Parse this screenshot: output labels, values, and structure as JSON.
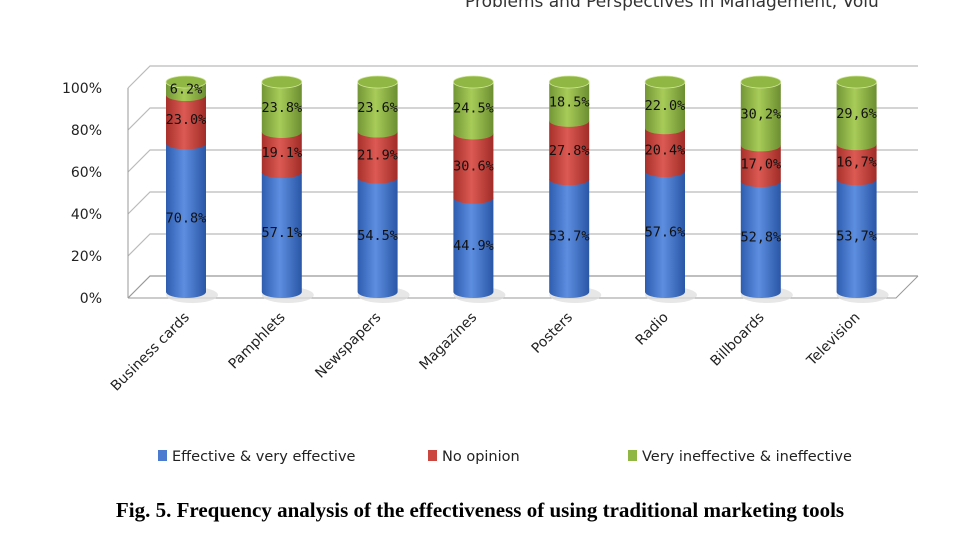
{
  "header": "Problems and Perspectives in Management, Volu",
  "caption": "Fig. 5. Frequency analysis of the effectiveness of using traditional marketing tools",
  "chart_data": {
    "type": "bar",
    "stacked": true,
    "style": "3d-cylinder",
    "title": "",
    "xlabel": "",
    "ylabel": "",
    "ylim": [
      0,
      100
    ],
    "y_ticks": [
      "0%",
      "20%",
      "40%",
      "60%",
      "80%",
      "100%"
    ],
    "grid": true,
    "legend_position": "bottom",
    "categories": [
      "Business cards",
      "Pamphlets",
      "Newspapers",
      "Magazines",
      "Posters",
      "Radio",
      "Billboards",
      "Television"
    ],
    "series": [
      {
        "name": "Effective & very effective",
        "color": "#4a7bd0",
        "values": [
          70.8,
          57.1,
          54.5,
          44.9,
          53.7,
          57.6,
          52.8,
          53.7
        ],
        "labels": [
          "70.8%",
          "57.1%",
          "54.5%",
          "44.9%",
          "53.7%",
          "57.6%",
          "52,8%",
          "53,7%"
        ]
      },
      {
        "name": "No opinion",
        "color": "#cc4640",
        "values": [
          23.0,
          19.1,
          21.9,
          30.6,
          27.8,
          20.4,
          17.0,
          16.7
        ],
        "labels": [
          "23.0%",
          "19.1%",
          "21.9%",
          "30.6%",
          "27.8%",
          "20.4%",
          "17,0%",
          "16,7%"
        ]
      },
      {
        "name": "Very ineffective & ineffective",
        "color": "#90b644",
        "values": [
          6.2,
          23.8,
          23.6,
          24.5,
          18.5,
          22.0,
          30.2,
          29.6
        ],
        "labels": [
          "6.2%",
          "23.8%",
          "23.6%",
          "24.5%",
          "18.5%",
          "22.0%",
          "30,2%",
          "29,6%"
        ]
      }
    ]
  }
}
